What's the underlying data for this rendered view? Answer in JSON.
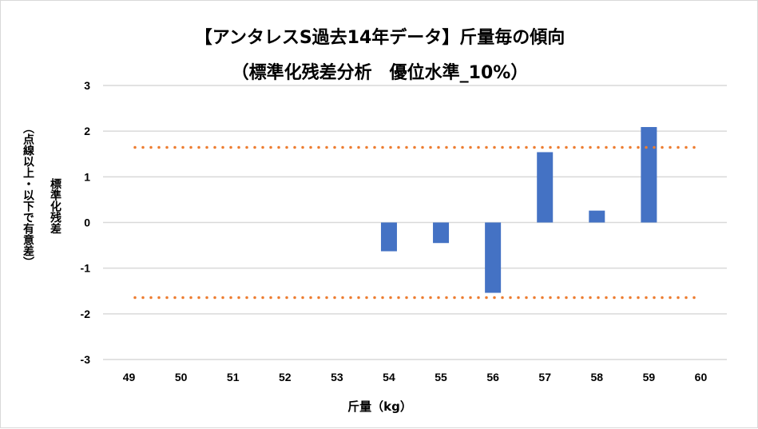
{
  "chart_data": {
    "type": "bar",
    "title": "【アンタレスS過去14年データ】斤量毎の傾向",
    "subtitle": "（標準化残差分析　優位水準_10%）",
    "xlabel": "斤量（kg）",
    "ylabel": "標準化残差",
    "ylabel2": "（点線以上・以下で有意差）",
    "categories": [
      "49",
      "50",
      "51",
      "52",
      "53",
      "54",
      "55",
      "56",
      "57",
      "58",
      "59",
      "60"
    ],
    "values": [
      null,
      null,
      null,
      null,
      null,
      -0.63,
      -0.45,
      -1.54,
      1.54,
      0.26,
      2.09,
      null
    ],
    "ylim": [
      -3,
      3
    ],
    "yticks": [
      3,
      2,
      1,
      0,
      -1,
      -2,
      -3
    ],
    "thresholds": [
      1.645,
      -1.645
    ],
    "grid": true,
    "colors": {
      "bar": "#4472c4",
      "threshold": "#ed7d31",
      "grid": "#d9d9d9"
    }
  }
}
